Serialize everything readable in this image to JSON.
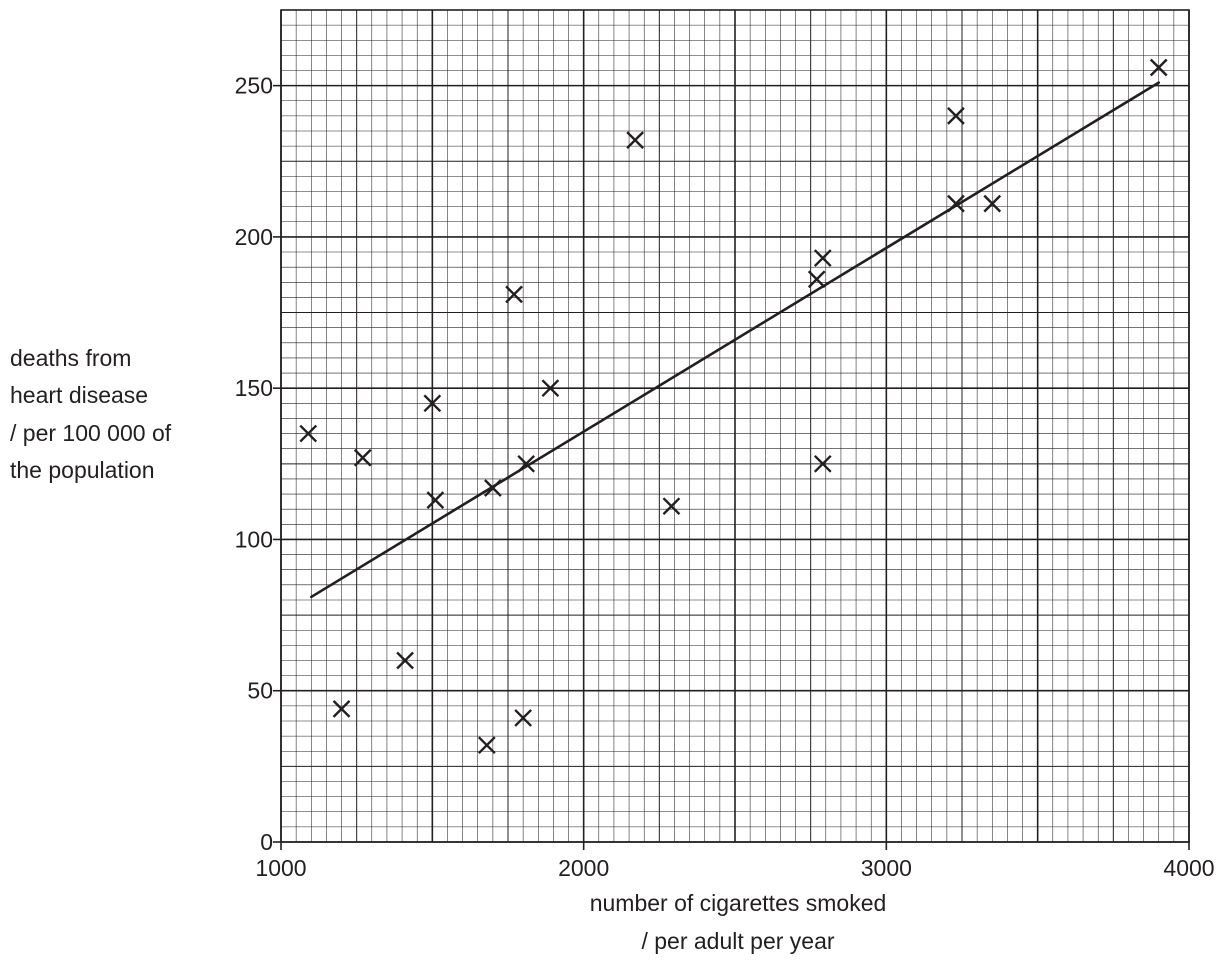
{
  "chart_data": {
    "type": "scatter",
    "title": "",
    "xlabel": [
      "number of cigarettes smoked",
      "/ per adult per year"
    ],
    "ylabel": [
      "deaths from",
      "heart disease",
      "/ per 100 000 of",
      "the population"
    ],
    "xlim": [
      1000,
      4000
    ],
    "ylim": [
      0,
      275
    ],
    "x_ticks": [
      1000,
      2000,
      3000,
      4000
    ],
    "x_tick_labels": [
      "1000",
      "2000",
      "3000",
      "4000"
    ],
    "y_ticks": [
      0,
      50,
      100,
      150,
      200,
      250
    ],
    "y_tick_labels": [
      "0",
      "50",
      "100",
      "150",
      "200",
      "250"
    ],
    "grid": "graph paper (minor every 50 x / 5 y, major every 500 x / 50 y)",
    "marker": "cross",
    "points": [
      {
        "x": 1090,
        "y": 135
      },
      {
        "x": 1200,
        "y": 44
      },
      {
        "x": 1270,
        "y": 127
      },
      {
        "x": 1410,
        "y": 60
      },
      {
        "x": 1500,
        "y": 145
      },
      {
        "x": 1510,
        "y": 113
      },
      {
        "x": 1680,
        "y": 32
      },
      {
        "x": 1700,
        "y": 117
      },
      {
        "x": 1770,
        "y": 181
      },
      {
        "x": 1800,
        "y": 41
      },
      {
        "x": 1810,
        "y": 125
      },
      {
        "x": 1890,
        "y": 150
      },
      {
        "x": 2170,
        "y": 232
      },
      {
        "x": 2290,
        "y": 111
      },
      {
        "x": 2770,
        "y": 186
      },
      {
        "x": 2790,
        "y": 193
      },
      {
        "x": 2790,
        "y": 125
      },
      {
        "x": 3230,
        "y": 211
      },
      {
        "x": 3230,
        "y": 240
      },
      {
        "x": 3350,
        "y": 211
      },
      {
        "x": 3900,
        "y": 256
      }
    ],
    "trend_line": {
      "x": [
        1100,
        3900
      ],
      "y": [
        81,
        251
      ]
    }
  }
}
